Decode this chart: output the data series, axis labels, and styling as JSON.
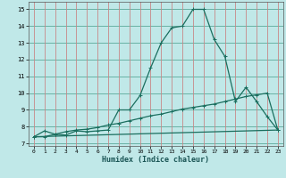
{
  "xlabel": "Humidex (Indice chaleur)",
  "background_color": "#c0e8e8",
  "grid_color_h": "#5ba89a",
  "grid_color_v": "#c88888",
  "line_color": "#1a6e5e",
  "xlim": [
    -0.5,
    23.5
  ],
  "ylim": [
    6.85,
    15.45
  ],
  "yticks": [
    7,
    8,
    9,
    10,
    11,
    12,
    13,
    14,
    15
  ],
  "xticks": [
    0,
    1,
    2,
    3,
    4,
    5,
    6,
    7,
    8,
    9,
    10,
    11,
    12,
    13,
    14,
    15,
    16,
    17,
    18,
    19,
    20,
    21,
    22,
    23
  ],
  "line1_x": [
    0,
    1,
    2,
    3,
    4,
    5,
    6,
    7,
    8,
    9,
    10,
    11,
    12,
    13,
    14,
    15,
    16,
    17,
    18,
    19,
    20,
    21,
    22,
    23
  ],
  "line1_y": [
    7.4,
    7.75,
    7.55,
    7.5,
    7.75,
    7.7,
    7.75,
    7.8,
    9.0,
    9.0,
    9.85,
    11.5,
    13.0,
    13.9,
    14.0,
    15.0,
    15.0,
    13.2,
    12.2,
    9.5,
    10.35,
    9.5,
    8.6,
    7.8
  ],
  "line2_x": [
    0,
    1,
    2,
    3,
    4,
    5,
    6,
    7,
    8,
    9,
    10,
    11,
    12,
    13,
    14,
    15,
    16,
    17,
    18,
    19,
    20,
    21,
    22,
    23
  ],
  "line2_y": [
    7.4,
    7.4,
    7.55,
    7.7,
    7.8,
    7.85,
    7.95,
    8.1,
    8.2,
    8.35,
    8.5,
    8.65,
    8.75,
    8.9,
    9.05,
    9.15,
    9.25,
    9.35,
    9.5,
    9.65,
    9.8,
    9.9,
    10.0,
    7.8
  ],
  "line3_x": [
    0,
    23
  ],
  "line3_y": [
    7.4,
    7.8
  ]
}
